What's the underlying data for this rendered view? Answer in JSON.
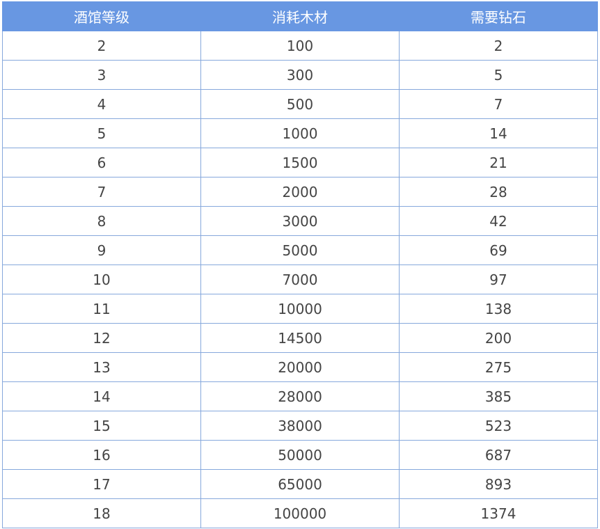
{
  "table": {
    "header": [
      "酒馆等级",
      "消耗木材",
      "需要钻石"
    ],
    "rows": [
      [
        2,
        100,
        2
      ],
      [
        3,
        300,
        5
      ],
      [
        4,
        500,
        7
      ],
      [
        5,
        1000,
        14
      ],
      [
        6,
        1500,
        21
      ],
      [
        7,
        2000,
        28
      ],
      [
        8,
        3000,
        42
      ],
      [
        9,
        5000,
        69
      ],
      [
        10,
        7000,
        97
      ],
      [
        11,
        10000,
        138
      ],
      [
        12,
        14500,
        200
      ],
      [
        13,
        20000,
        275
      ],
      [
        14,
        28000,
        385
      ],
      [
        15,
        38000,
        523
      ],
      [
        16,
        50000,
        687
      ],
      [
        17,
        65000,
        893
      ],
      [
        18,
        100000,
        1374
      ]
    ]
  }
}
